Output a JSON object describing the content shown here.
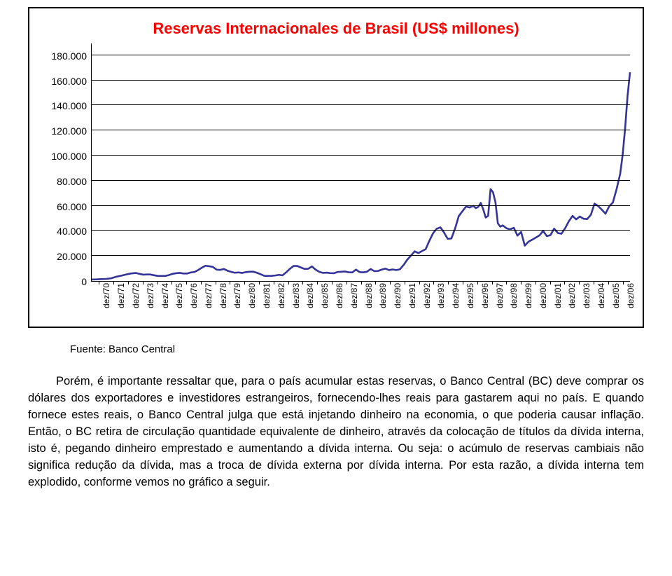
{
  "chart": {
    "type": "line",
    "title": "Reservas Internacionales de Brasil (US$ millones)",
    "title_color": "#ff0000",
    "title_fontsize": 22,
    "title_fontweight": "bold",
    "background_color": "#ffffff",
    "frame_border_color": "#000000",
    "axis_color": "#000000",
    "grid_color": "#000000",
    "line_color": "#333399",
    "line_width": 2.6,
    "ylim": [
      0,
      190000
    ],
    "ytick_step": 20000,
    "ytick_labels": [
      "0",
      "20.000",
      "40.000",
      "60.000",
      "80.000",
      "100.000",
      "120.000",
      "140.000",
      "160.000",
      "180.000"
    ],
    "ytick_values": [
      0,
      20000,
      40000,
      60000,
      80000,
      100000,
      120000,
      140000,
      160000,
      180000
    ],
    "label_fontsize": 14,
    "xlabel_fontsize": 12,
    "xlabels": [
      "dez/70",
      "dez/71",
      "dez/72",
      "dez/73",
      "dez/74",
      "dez/75",
      "dez/76",
      "dez/77",
      "dez/78",
      "dez/79",
      "dez/80",
      "dez/81",
      "dez/82",
      "dez/83",
      "dez/84",
      "dez/85",
      "dez/86",
      "dez/87",
      "dez/88",
      "dez/89",
      "dez/90",
      "dez/91",
      "dez/92",
      "dez/93",
      "dez/94",
      "dez/95",
      "dez/96",
      "dez/97",
      "dez/98",
      "dez/99",
      "dez/00",
      "dez/01",
      "dez/02",
      "dez/03",
      "dez/04",
      "dez/05",
      "dez/06"
    ],
    "series": [
      1200,
      1700,
      4200,
      6400,
      5200,
      4000,
      6500,
      7200,
      11800,
      9600,
      6900,
      7500,
      4000,
      4500,
      12000,
      11600,
      6700,
      7400,
      9100,
      9600,
      9900,
      9400,
      23700,
      32200,
      38800,
      51800,
      60100,
      52100,
      44500,
      36300,
      33000,
      35900,
      37800,
      49300,
      52900,
      53800,
      85800
    ],
    "monthly_points": [
      [
        0,
        1200
      ],
      [
        4,
        1300
      ],
      [
        8,
        1500
      ],
      [
        12,
        1700
      ],
      [
        16,
        2200
      ],
      [
        20,
        3400
      ],
      [
        24,
        4200
      ],
      [
        28,
        5200
      ],
      [
        32,
        6000
      ],
      [
        36,
        6400
      ],
      [
        39,
        5700
      ],
      [
        42,
        5100
      ],
      [
        45,
        5200
      ],
      [
        48,
        5200
      ],
      [
        51,
        4600
      ],
      [
        54,
        4000
      ],
      [
        57,
        4000
      ],
      [
        60,
        4000
      ],
      [
        63,
        4700
      ],
      [
        66,
        5700
      ],
      [
        69,
        6200
      ],
      [
        72,
        6500
      ],
      [
        75,
        6000
      ],
      [
        78,
        6000
      ],
      [
        81,
        6900
      ],
      [
        84,
        7200
      ],
      [
        87,
        8800
      ],
      [
        90,
        10600
      ],
      [
        93,
        12200
      ],
      [
        96,
        11800
      ],
      [
        99,
        11300
      ],
      [
        102,
        9100
      ],
      [
        105,
        8900
      ],
      [
        108,
        9600
      ],
      [
        111,
        8200
      ],
      [
        114,
        7300
      ],
      [
        117,
        6600
      ],
      [
        120,
        6900
      ],
      [
        123,
        6400
      ],
      [
        126,
        7100
      ],
      [
        129,
        7400
      ],
      [
        132,
        7500
      ],
      [
        135,
        6600
      ],
      [
        138,
        5400
      ],
      [
        141,
        4200
      ],
      [
        144,
        4000
      ],
      [
        147,
        4100
      ],
      [
        150,
        4400
      ],
      [
        153,
        4900
      ],
      [
        156,
        4500
      ],
      [
        159,
        7000
      ],
      [
        162,
        9700
      ],
      [
        165,
        12000
      ],
      [
        168,
        12000
      ],
      [
        171,
        10800
      ],
      [
        174,
        9600
      ],
      [
        177,
        9800
      ],
      [
        180,
        11600
      ],
      [
        183,
        9100
      ],
      [
        186,
        7400
      ],
      [
        189,
        6500
      ],
      [
        192,
        6700
      ],
      [
        195,
        6300
      ],
      [
        198,
        6200
      ],
      [
        201,
        7200
      ],
      [
        204,
        7400
      ],
      [
        207,
        7600
      ],
      [
        210,
        7000
      ],
      [
        213,
        6900
      ],
      [
        216,
        9100
      ],
      [
        219,
        7100
      ],
      [
        222,
        7000
      ],
      [
        225,
        7400
      ],
      [
        228,
        9600
      ],
      [
        231,
        7900
      ],
      [
        234,
        8000
      ],
      [
        237,
        9100
      ],
      [
        240,
        9900
      ],
      [
        243,
        8700
      ],
      [
        246,
        9200
      ],
      [
        249,
        8800
      ],
      [
        252,
        9400
      ],
      [
        255,
        12900
      ],
      [
        258,
        17100
      ],
      [
        261,
        20400
      ],
      [
        264,
        23700
      ],
      [
        267,
        22300
      ],
      [
        270,
        24000
      ],
      [
        273,
        25400
      ],
      [
        276,
        32200
      ],
      [
        279,
        38100
      ],
      [
        282,
        41800
      ],
      [
        285,
        42900
      ],
      [
        288,
        38800
      ],
      [
        291,
        33700
      ],
      [
        294,
        34000
      ],
      [
        297,
        41900
      ],
      [
        300,
        51800
      ],
      [
        303,
        55800
      ],
      [
        306,
        59500
      ],
      [
        309,
        58800
      ],
      [
        312,
        60100
      ],
      [
        314,
        58300
      ],
      [
        316,
        59300
      ],
      [
        318,
        62500
      ],
      [
        320,
        57400
      ],
      [
        322,
        50800
      ],
      [
        324,
        52100
      ],
      [
        326,
        73500
      ],
      [
        328,
        71000
      ],
      [
        330,
        63000
      ],
      [
        332,
        46100
      ],
      [
        334,
        43400
      ],
      [
        336,
        44500
      ],
      [
        339,
        42200
      ],
      [
        342,
        41300
      ],
      [
        345,
        42600
      ],
      [
        348,
        36300
      ],
      [
        351,
        39200
      ],
      [
        354,
        28300
      ],
      [
        357,
        31400
      ],
      [
        360,
        33000
      ],
      [
        363,
        34700
      ],
      [
        366,
        36500
      ],
      [
        369,
        40000
      ],
      [
        372,
        35900
      ],
      [
        375,
        36700
      ],
      [
        378,
        41900
      ],
      [
        381,
        38400
      ],
      [
        384,
        37800
      ],
      [
        387,
        42300
      ],
      [
        390,
        47700
      ],
      [
        393,
        52100
      ],
      [
        396,
        49300
      ],
      [
        399,
        51600
      ],
      [
        402,
        49800
      ],
      [
        405,
        49500
      ],
      [
        408,
        52900
      ],
      [
        411,
        61900
      ],
      [
        414,
        59900
      ],
      [
        417,
        57000
      ],
      [
        420,
        53800
      ],
      [
        423,
        59800
      ],
      [
        426,
        62700
      ],
      [
        429,
        73400
      ],
      [
        432,
        85800
      ],
      [
        434,
        101000
      ],
      [
        436,
        122000
      ],
      [
        438,
        148000
      ],
      [
        440,
        167000
      ]
    ],
    "x_points_total": 440
  },
  "source": "Fuente: Banco Central",
  "paragraph1": "Porém, é importante ressaltar que, para o país acumular estas reservas, o Banco Central (BC) deve comprar os dólares dos exportadores e investidores estrangeiros, fornecendo-lhes reais para gastarem aqui no país. E quando fornece estes reais, o Banco Central julga que está injetando dinheiro na economia, o que poderia causar inflação. Então, o BC retira de circulação quantidade equivalente de dinheiro, através da colocação de títulos da dívida interna, isto é, pegando dinheiro emprestado e aumentando a dívida interna. Ou seja: o acúmulo de reservas cambiais não significa redução da dívida, mas a troca de dívida externa por dívida interna. Por esta razão, a dívida interna tem explodido, conforme vemos no gráfico a seguir."
}
